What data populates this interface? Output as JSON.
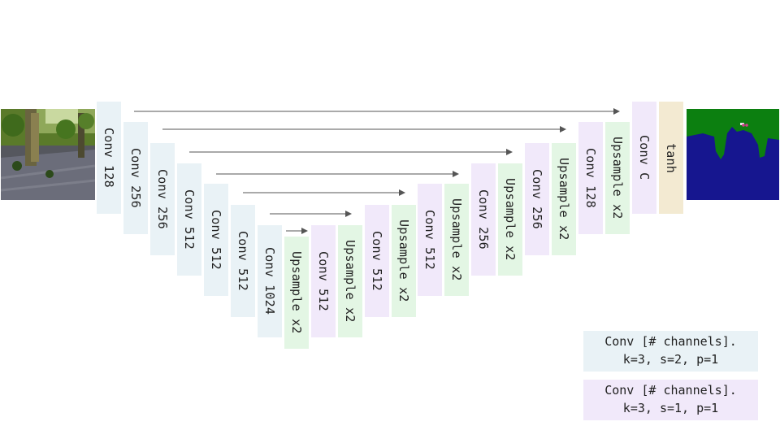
{
  "blocks": [
    {
      "label": "Conv 128",
      "kind": "enc"
    },
    {
      "label": "Conv 256",
      "kind": "enc"
    },
    {
      "label": "Conv 256",
      "kind": "enc"
    },
    {
      "label": "Conv 512",
      "kind": "enc"
    },
    {
      "label": "Conv 512",
      "kind": "enc"
    },
    {
      "label": "Conv 512",
      "kind": "enc"
    },
    {
      "label": "Conv 1024",
      "kind": "enc"
    },
    {
      "label": "Upsample x2",
      "kind": "up"
    },
    {
      "label": "Conv 512",
      "kind": "dec"
    },
    {
      "label": "Upsample x2",
      "kind": "up"
    },
    {
      "label": "Conv 512",
      "kind": "dec"
    },
    {
      "label": "Upsample x2",
      "kind": "up"
    },
    {
      "label": "Conv 512",
      "kind": "dec"
    },
    {
      "label": "Upsample x2",
      "kind": "up"
    },
    {
      "label": "Conv 256",
      "kind": "dec"
    },
    {
      "label": "Upsample x2",
      "kind": "up"
    },
    {
      "label": "Conv 256",
      "kind": "dec"
    },
    {
      "label": "Upsample x2",
      "kind": "up"
    },
    {
      "label": "Conv 128",
      "kind": "dec"
    },
    {
      "label": "Upsample x2",
      "kind": "up"
    },
    {
      "label": "Conv C",
      "kind": "dec"
    },
    {
      "label": "tanh",
      "kind": "out"
    }
  ],
  "legend": {
    "stride2": "Conv [# channels].\nk=3, s=2, p=1",
    "stride1": "Conv [# channels].\nk=3, s=1, p=1"
  },
  "colors": {
    "encoder": "#e9f2f6",
    "upsample": "#e3f6e4",
    "decoder": "#f1e9fa",
    "output": "#f3ead2",
    "arrow": "#555555",
    "seg_blue": "#16168f",
    "seg_green": "#0c7f10"
  },
  "images": {
    "input": "input-photo",
    "output": "segmentation-map"
  }
}
